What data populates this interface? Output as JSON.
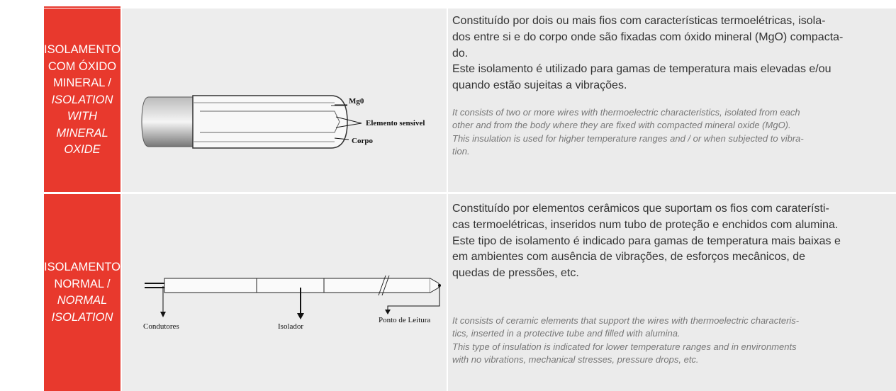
{
  "rows": [
    {
      "label": {
        "pt": [
          "ISOLAMENTO",
          "COM ÓXIDO",
          "MINERAL /"
        ],
        "en": [
          "ISOLATION WITH",
          "MINERAL OXIDE"
        ]
      },
      "figure_labels": [
        "Mg0",
        "Elemento sensivel",
        "Corpo"
      ],
      "text_pt": [
        "Constituído por dois ou mais fios com características termoelétricas, isola-",
        "dos entre si e do corpo onde são fixadas com óxido mineral (MgO) compacta-",
        "do.",
        "Este isolamento é utilizado para gamas de temperatura mais elevadas e/ou",
        "quando estão sujeitas a  vibrações."
      ],
      "text_en": [
        "It consists of two or more wires with thermoelectric characteristics, isolated from each",
        "other and from the body where they are fixed with compacted mineral oxide (MgO).",
        "This insulation is used for higher temperature ranges and / or when subjected to vibra-",
        "tion."
      ]
    },
    {
      "label": {
        "pt": [
          "ISOLAMENTO",
          "NORMAL /"
        ],
        "en": [
          "NORMAL",
          "ISOLATION"
        ]
      },
      "figure_labels": [
        "Condutores",
        "Isolador",
        "Ponto de Leitura"
      ],
      "text_pt": [
        "Constituído por elementos cerâmicos que suportam os fios com caraterísti-",
        "cas termoelétricas, inseridos num tubo de proteção e enchidos com alumina.",
        "Este tipo de isolamento é indicado para gamas de temperatura mais baixas e",
        "em ambientes com ausência de vibrações, de     esforços mecânicos, de",
        "quedas de pressões, etc."
      ],
      "text_en": [
        "It consists of ceramic elements that support the wires with thermoelectric characteris-",
        "tics, inserted in a protective tube and filled with alumina.",
        "This type of insulation is indicated for lower temperature ranges and in environments",
        "with no vibrations, mechanical stresses, pressure drops, etc."
      ]
    }
  ]
}
